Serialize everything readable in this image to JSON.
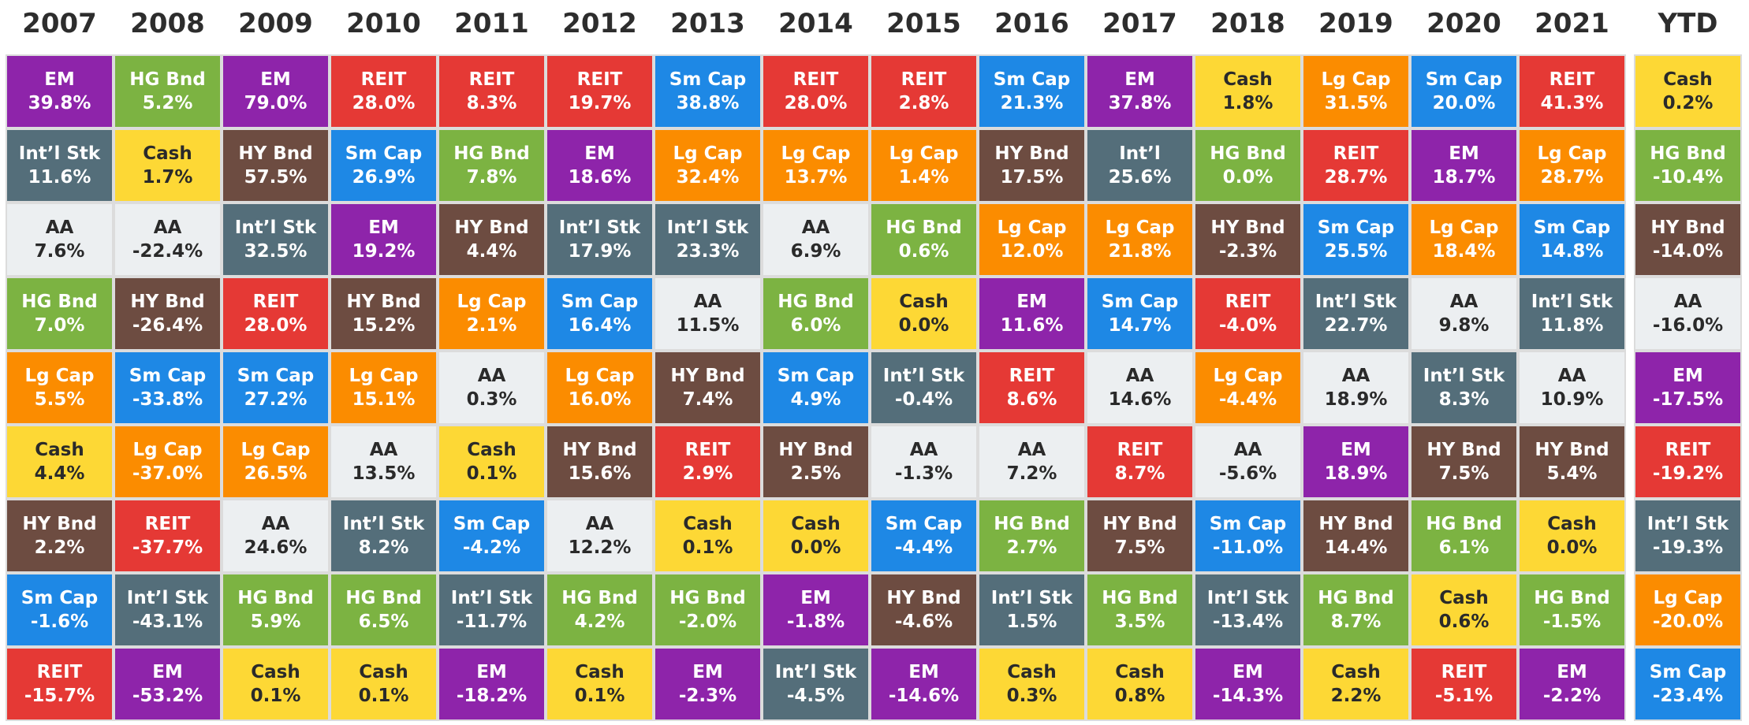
{
  "chart_data": {
    "type": "table",
    "columns": [
      "2007",
      "2008",
      "2009",
      "2010",
      "2011",
      "2012",
      "2013",
      "2014",
      "2015",
      "2016",
      "2017",
      "2018",
      "2019",
      "2020",
      "2021"
    ],
    "ytd_column": "YTD",
    "colors": {
      "EM": "#8e24aa",
      "REIT": "#e53935",
      "Sm Cap": "#1e88e5",
      "Lg Cap": "#fb8c00",
      "Int'l Stk": "#546e7a",
      "Int'l": "#546e7a",
      "HG Bnd": "#7cb342",
      "HY Bnd": "#6d4c41",
      "Cash": "#fdd835",
      "AA": "#eceff1"
    },
    "light_text_classes": [
      "Cash",
      "AA"
    ],
    "data": [
      [
        [
          "EM",
          "39.8%"
        ],
        [
          "Int’l Stk",
          "11.6%"
        ],
        [
          "AA",
          "7.6%"
        ],
        [
          "HG Bnd",
          "7.0%"
        ],
        [
          "Lg Cap",
          "5.5%"
        ],
        [
          "Cash",
          "4.4%"
        ],
        [
          "HY Bnd",
          "2.2%"
        ],
        [
          "Sm Cap",
          "-1.6%"
        ],
        [
          "REIT",
          "-15.7%"
        ]
      ],
      [
        [
          "HG Bnd",
          "5.2%"
        ],
        [
          "Cash",
          "1.7%"
        ],
        [
          "AA",
          "-22.4%"
        ],
        [
          "HY Bnd",
          "-26.4%"
        ],
        [
          "Sm Cap",
          "-33.8%"
        ],
        [
          "Lg Cap",
          "-37.0%"
        ],
        [
          "REIT",
          "-37.7%"
        ],
        [
          "Int’l Stk",
          "-43.1%"
        ],
        [
          "EM",
          "-53.2%"
        ]
      ],
      [
        [
          "EM",
          "79.0%"
        ],
        [
          "HY Bnd",
          "57.5%"
        ],
        [
          "Int’l Stk",
          "32.5%"
        ],
        [
          "REIT",
          "28.0%"
        ],
        [
          "Sm Cap",
          "27.2%"
        ],
        [
          "Lg Cap",
          "26.5%"
        ],
        [
          "AA",
          "24.6%"
        ],
        [
          "HG Bnd",
          "5.9%"
        ],
        [
          "Cash",
          "0.1%"
        ]
      ],
      [
        [
          "REIT",
          "28.0%"
        ],
        [
          "Sm Cap",
          "26.9%"
        ],
        [
          "EM",
          "19.2%"
        ],
        [
          "HY Bnd",
          "15.2%"
        ],
        [
          "Lg Cap",
          "15.1%"
        ],
        [
          "AA",
          "13.5%"
        ],
        [
          "Int’l Stk",
          "8.2%"
        ],
        [
          "HG Bnd",
          "6.5%"
        ],
        [
          "Cash",
          "0.1%"
        ]
      ],
      [
        [
          "REIT",
          "8.3%"
        ],
        [
          "HG Bnd",
          "7.8%"
        ],
        [
          "HY Bnd",
          "4.4%"
        ],
        [
          "Lg Cap",
          "2.1%"
        ],
        [
          "AA",
          "0.3%"
        ],
        [
          "Cash",
          "0.1%"
        ],
        [
          "Sm Cap",
          "-4.2%"
        ],
        [
          "Int’l Stk",
          "-11.7%"
        ],
        [
          "EM",
          "-18.2%"
        ]
      ],
      [
        [
          "REIT",
          "19.7%"
        ],
        [
          "EM",
          "18.6%"
        ],
        [
          "Int’l Stk",
          "17.9%"
        ],
        [
          "Sm Cap",
          "16.4%"
        ],
        [
          "Lg Cap",
          "16.0%"
        ],
        [
          "HY Bnd",
          "15.6%"
        ],
        [
          "AA",
          "12.2%"
        ],
        [
          "HG Bnd",
          "4.2%"
        ],
        [
          "Cash",
          "0.1%"
        ]
      ],
      [
        [
          "Sm Cap",
          "38.8%"
        ],
        [
          "Lg Cap",
          "32.4%"
        ],
        [
          "Int’l Stk",
          "23.3%"
        ],
        [
          "AA",
          "11.5%"
        ],
        [
          "HY Bnd",
          "7.4%"
        ],
        [
          "REIT",
          "2.9%"
        ],
        [
          "Cash",
          "0.1%"
        ],
        [
          "HG Bnd",
          "-2.0%"
        ],
        [
          "EM",
          "-2.3%"
        ]
      ],
      [
        [
          "REIT",
          "28.0%"
        ],
        [
          "Lg Cap",
          "13.7%"
        ],
        [
          "AA",
          "6.9%"
        ],
        [
          "HG Bnd",
          "6.0%"
        ],
        [
          "Sm Cap",
          "4.9%"
        ],
        [
          "HY Bnd",
          "2.5%"
        ],
        [
          "Cash",
          "0.0%"
        ],
        [
          "EM",
          "-1.8%"
        ],
        [
          "Int’l Stk",
          "-4.5%"
        ]
      ],
      [
        [
          "REIT",
          "2.8%"
        ],
        [
          "Lg Cap",
          "1.4%"
        ],
        [
          "HG Bnd",
          "0.6%"
        ],
        [
          "Cash",
          "0.0%"
        ],
        [
          "Int’l Stk",
          "-0.4%"
        ],
        [
          "AA",
          "-1.3%"
        ],
        [
          "Sm Cap",
          "-4.4%"
        ],
        [
          "HY Bnd",
          "-4.6%"
        ],
        [
          "EM",
          "-14.6%"
        ]
      ],
      [
        [
          "Sm Cap",
          "21.3%"
        ],
        [
          "HY Bnd",
          "17.5%"
        ],
        [
          "Lg Cap",
          "12.0%"
        ],
        [
          "EM",
          "11.6%"
        ],
        [
          "REIT",
          "8.6%"
        ],
        [
          "AA",
          "7.2%"
        ],
        [
          "HG Bnd",
          "2.7%"
        ],
        [
          "Int’l Stk",
          "1.5%"
        ],
        [
          "Cash",
          "0.3%"
        ]
      ],
      [
        [
          "EM",
          "37.8%"
        ],
        [
          "Int’l",
          "25.6%"
        ],
        [
          "Lg Cap",
          "21.8%"
        ],
        [
          "Sm Cap",
          "14.7%"
        ],
        [
          "AA",
          "14.6%"
        ],
        [
          "REIT",
          "8.7%"
        ],
        [
          "HY Bnd",
          "7.5%"
        ],
        [
          "HG Bnd",
          "3.5%"
        ],
        [
          "Cash",
          "0.8%"
        ]
      ],
      [
        [
          "Cash",
          "1.8%"
        ],
        [
          "HG Bnd",
          "0.0%"
        ],
        [
          "HY Bnd",
          "-2.3%"
        ],
        [
          "REIT",
          "-4.0%"
        ],
        [
          "Lg Cap",
          "-4.4%"
        ],
        [
          "AA",
          "-5.6%"
        ],
        [
          "Sm Cap",
          "-11.0%"
        ],
        [
          "Int’l Stk",
          "-13.4%"
        ],
        [
          "EM",
          "-14.3%"
        ]
      ],
      [
        [
          "Lg Cap",
          "31.5%"
        ],
        [
          "REIT",
          "28.7%"
        ],
        [
          "Sm Cap",
          "25.5%"
        ],
        [
          "Int’l Stk",
          "22.7%"
        ],
        [
          "AA",
          "18.9%"
        ],
        [
          "EM",
          "18.9%"
        ],
        [
          "HY Bnd",
          "14.4%"
        ],
        [
          "HG Bnd",
          "8.7%"
        ],
        [
          "Cash",
          "2.2%"
        ]
      ],
      [
        [
          "Sm Cap",
          "20.0%"
        ],
        [
          "EM",
          "18.7%"
        ],
        [
          "Lg Cap",
          "18.4%"
        ],
        [
          "AA",
          "9.8%"
        ],
        [
          "Int’l Stk",
          "8.3%"
        ],
        [
          "HY Bnd",
          "7.5%"
        ],
        [
          "HG Bnd",
          "6.1%"
        ],
        [
          "Cash",
          "0.6%"
        ],
        [
          "REIT",
          "-5.1%"
        ]
      ],
      [
        [
          "REIT",
          "41.3%"
        ],
        [
          "Lg Cap",
          "28.7%"
        ],
        [
          "Sm Cap",
          "14.8%"
        ],
        [
          "Int’l Stk",
          "11.8%"
        ],
        [
          "AA",
          "10.9%"
        ],
        [
          "HY Bnd",
          "5.4%"
        ],
        [
          "Cash",
          "0.0%"
        ],
        [
          "HG Bnd",
          "-1.5%"
        ],
        [
          "EM",
          "-2.2%"
        ]
      ]
    ],
    "ytd": [
      [
        "Cash",
        "0.2%"
      ],
      [
        "HG Bnd",
        "-10.4%"
      ],
      [
        "HY Bnd",
        "-14.0%"
      ],
      [
        "AA",
        "-16.0%"
      ],
      [
        "EM",
        "-17.5%"
      ],
      [
        "REIT",
        "-19.2%"
      ],
      [
        "Int’l Stk",
        "-19.3%"
      ],
      [
        "Lg Cap",
        "-20.0%"
      ],
      [
        "Sm Cap",
        "-23.4%"
      ]
    ]
  }
}
